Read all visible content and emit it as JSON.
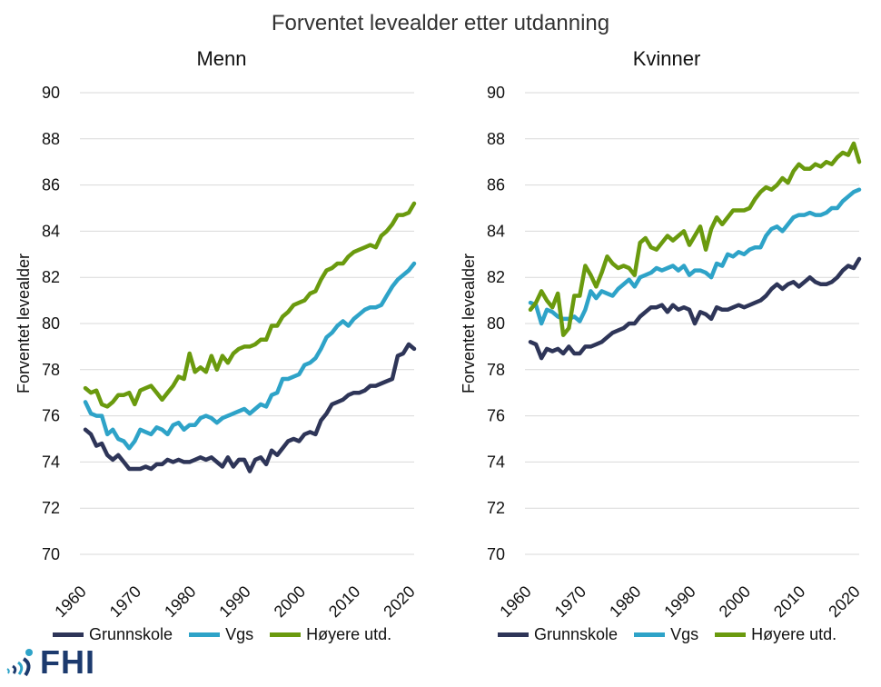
{
  "title": "Forventet levealder etter utdanning",
  "logo_text": "FHI",
  "colors": {
    "Grunnskole": "#2e3558",
    "Vgs": "#2ea3c8",
    "Høyere utd.": "#6a9a0e"
  },
  "chart_data": [
    {
      "type": "line",
      "title": "Menn",
      "xlabel": "",
      "ylabel": "Forventet levealder",
      "ylim": [
        70,
        90
      ],
      "yticks": [
        "70",
        "72",
        "74",
        "76",
        "78",
        "80",
        "82",
        "84",
        "86",
        "88",
        "90"
      ],
      "xlim": [
        1960,
        2021
      ],
      "xticks": [
        "1960",
        "1970",
        "1980",
        "1990",
        "2000",
        "2010",
        "2020"
      ],
      "x": [
        1961,
        1962,
        1963,
        1964,
        1965,
        1966,
        1967,
        1968,
        1969,
        1970,
        1971,
        1972,
        1973,
        1974,
        1975,
        1976,
        1977,
        1978,
        1979,
        1980,
        1981,
        1982,
        1983,
        1984,
        1985,
        1986,
        1987,
        1988,
        1989,
        1990,
        1991,
        1992,
        1993,
        1994,
        1995,
        1996,
        1997,
        1998,
        1999,
        2000,
        2001,
        2002,
        2003,
        2004,
        2005,
        2006,
        2007,
        2008,
        2009,
        2010,
        2011,
        2012,
        2013,
        2014,
        2015,
        2016,
        2017,
        2018,
        2019,
        2020,
        2021
      ],
      "series": [
        {
          "name": "Grunnskole",
          "values": [
            75.4,
            75.2,
            74.7,
            74.8,
            74.3,
            74.1,
            74.3,
            74.0,
            73.7,
            73.7,
            73.7,
            73.8,
            73.7,
            73.9,
            73.9,
            74.1,
            74.0,
            74.1,
            74.0,
            74.0,
            74.1,
            74.2,
            74.1,
            74.2,
            74.0,
            73.8,
            74.2,
            73.8,
            74.1,
            74.1,
            73.6,
            74.1,
            74.2,
            73.9,
            74.5,
            74.3,
            74.6,
            74.9,
            75.0,
            74.9,
            75.2,
            75.3,
            75.2,
            75.8,
            76.1,
            76.5,
            76.6,
            76.7,
            76.9,
            77.0,
            77.0,
            77.1,
            77.3,
            77.3,
            77.4,
            77.5,
            77.6,
            78.6,
            78.7,
            79.1,
            78.9
          ]
        },
        {
          "name": "Vgs",
          "values": [
            76.6,
            76.1,
            76.0,
            76.0,
            75.2,
            75.4,
            75.0,
            74.9,
            74.6,
            74.9,
            75.4,
            75.3,
            75.2,
            75.5,
            75.4,
            75.2,
            75.6,
            75.7,
            75.4,
            75.6,
            75.6,
            75.9,
            76.0,
            75.9,
            75.7,
            75.9,
            76.0,
            76.1,
            76.2,
            76.3,
            76.1,
            76.3,
            76.5,
            76.4,
            76.9,
            77.0,
            77.6,
            77.6,
            77.7,
            77.8,
            78.2,
            78.3,
            78.5,
            78.9,
            79.4,
            79.6,
            79.9,
            80.1,
            79.9,
            80.2,
            80.4,
            80.6,
            80.7,
            80.7,
            80.8,
            81.2,
            81.6,
            81.9,
            82.1,
            82.3,
            82.6
          ]
        },
        {
          "name": "Høyere utd.",
          "values": [
            77.2,
            77.0,
            77.1,
            76.5,
            76.4,
            76.6,
            76.9,
            76.9,
            77.0,
            76.5,
            77.1,
            77.2,
            77.3,
            77.0,
            76.7,
            77.0,
            77.3,
            77.7,
            77.6,
            78.7,
            77.9,
            78.1,
            77.9,
            78.6,
            78.0,
            78.6,
            78.3,
            78.7,
            78.9,
            79.0,
            79.0,
            79.1,
            79.3,
            79.3,
            79.9,
            79.9,
            80.3,
            80.5,
            80.8,
            80.9,
            81.0,
            81.3,
            81.4,
            81.9,
            82.3,
            82.4,
            82.6,
            82.6,
            82.9,
            83.1,
            83.2,
            83.3,
            83.4,
            83.3,
            83.8,
            84.0,
            84.3,
            84.7,
            84.7,
            84.8,
            85.2
          ]
        }
      ]
    },
    {
      "type": "line",
      "title": "Kvinner",
      "xlabel": "",
      "ylabel": "Forventet levealder",
      "ylim": [
        70,
        90
      ],
      "yticks": [
        "70",
        "72",
        "74",
        "76",
        "78",
        "80",
        "82",
        "84",
        "86",
        "88",
        "90"
      ],
      "xlim": [
        1960,
        2021
      ],
      "xticks": [
        "1960",
        "1970",
        "1980",
        "1990",
        "2000",
        "2010",
        "2020"
      ],
      "x": [
        1961,
        1962,
        1963,
        1964,
        1965,
        1966,
        1967,
        1968,
        1969,
        1970,
        1971,
        1972,
        1973,
        1974,
        1975,
        1976,
        1977,
        1978,
        1979,
        1980,
        1981,
        1982,
        1983,
        1984,
        1985,
        1986,
        1987,
        1988,
        1989,
        1990,
        1991,
        1992,
        1993,
        1994,
        1995,
        1996,
        1997,
        1998,
        1999,
        2000,
        2001,
        2002,
        2003,
        2004,
        2005,
        2006,
        2007,
        2008,
        2009,
        2010,
        2011,
        2012,
        2013,
        2014,
        2015,
        2016,
        2017,
        2018,
        2019,
        2020,
        2021
      ],
      "series": [
        {
          "name": "Grunnskole",
          "values": [
            79.2,
            79.1,
            78.5,
            78.9,
            78.8,
            78.9,
            78.7,
            79.0,
            78.7,
            78.7,
            79.0,
            79.0,
            79.1,
            79.2,
            79.4,
            79.6,
            79.7,
            79.8,
            80.0,
            80.0,
            80.3,
            80.5,
            80.7,
            80.7,
            80.8,
            80.5,
            80.8,
            80.6,
            80.7,
            80.6,
            80.0,
            80.5,
            80.4,
            80.2,
            80.7,
            80.6,
            80.6,
            80.7,
            80.8,
            80.7,
            80.8,
            80.9,
            81.0,
            81.2,
            81.5,
            81.7,
            81.5,
            81.7,
            81.8,
            81.6,
            81.8,
            82.0,
            81.8,
            81.7,
            81.7,
            81.8,
            82.0,
            82.3,
            82.5,
            82.4,
            82.8
          ]
        },
        {
          "name": "Vgs",
          "values": [
            80.9,
            80.8,
            80.0,
            80.6,
            80.5,
            80.3,
            80.2,
            80.2,
            80.3,
            80.1,
            80.6,
            81.4,
            81.1,
            81.4,
            81.3,
            81.2,
            81.5,
            81.7,
            81.9,
            81.6,
            82.0,
            82.1,
            82.2,
            82.4,
            82.3,
            82.4,
            82.5,
            82.3,
            82.5,
            82.1,
            82.3,
            82.3,
            82.2,
            82.0,
            82.6,
            82.5,
            83.0,
            82.9,
            83.1,
            83.0,
            83.2,
            83.3,
            83.3,
            83.8,
            84.1,
            84.2,
            84.0,
            84.3,
            84.6,
            84.7,
            84.7,
            84.8,
            84.7,
            84.7,
            84.8,
            85.0,
            85.0,
            85.3,
            85.5,
            85.7,
            85.8
          ]
        },
        {
          "name": "Høyere utd.",
          "values": [
            80.6,
            80.9,
            81.4,
            81.0,
            80.7,
            81.3,
            79.5,
            79.8,
            81.2,
            81.2,
            82.5,
            82.1,
            81.6,
            82.2,
            82.9,
            82.6,
            82.4,
            82.5,
            82.4,
            82.1,
            83.5,
            83.7,
            83.3,
            83.2,
            83.5,
            83.8,
            83.6,
            83.8,
            84.0,
            83.4,
            83.8,
            84.2,
            83.2,
            84.1,
            84.6,
            84.3,
            84.6,
            84.9,
            84.9,
            84.9,
            85.0,
            85.4,
            85.7,
            85.9,
            85.8,
            86.0,
            86.3,
            86.1,
            86.6,
            86.9,
            86.7,
            86.7,
            86.9,
            86.8,
            87.0,
            86.9,
            87.2,
            87.4,
            87.3,
            87.8,
            87.0
          ]
        }
      ]
    }
  ]
}
